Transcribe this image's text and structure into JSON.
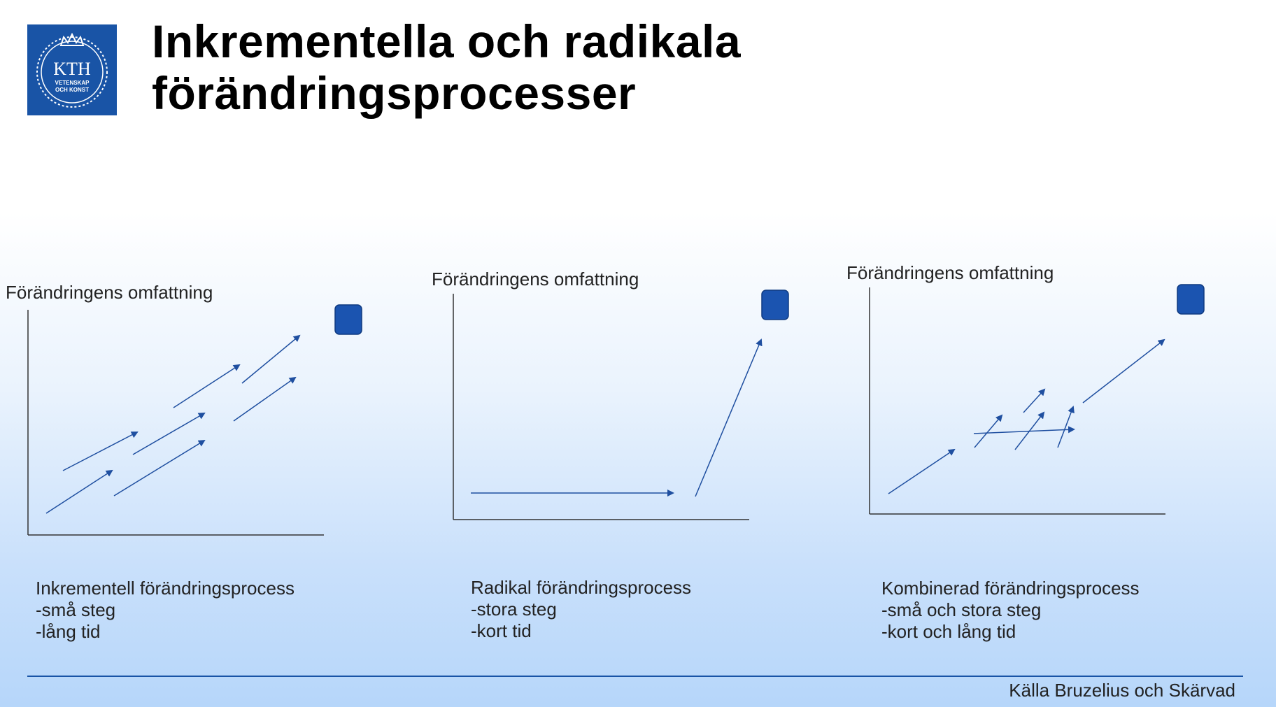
{
  "header": {
    "logo_text": "KTH",
    "logo_subtext": [
      "VETENSKAP",
      "OCH KONST"
    ],
    "title_line1": "Inkrementella och radikala",
    "title_line2": "förändringsprocesser"
  },
  "colors": {
    "accent": "#1954a6",
    "arrow": "#1f4fa0"
  },
  "diagrams": [
    {
      "y_axis_label": "Förändringens omfattning",
      "caption": [
        "Inkrementell förändringsprocess",
        "-små steg",
        "-lång tid"
      ]
    },
    {
      "y_axis_label": "Förändringens omfattning",
      "caption": [
        "Radikal förändringsprocess",
        "-stora steg",
        "-kort tid"
      ]
    },
    {
      "y_axis_label": "Förändringens omfattning",
      "caption": [
        "Kombinerad förändringsprocess",
        "-små och stora steg",
        "-kort och lång tid"
      ]
    }
  ],
  "footer": {
    "source": "Källa Bruzelius och Skärvad"
  }
}
